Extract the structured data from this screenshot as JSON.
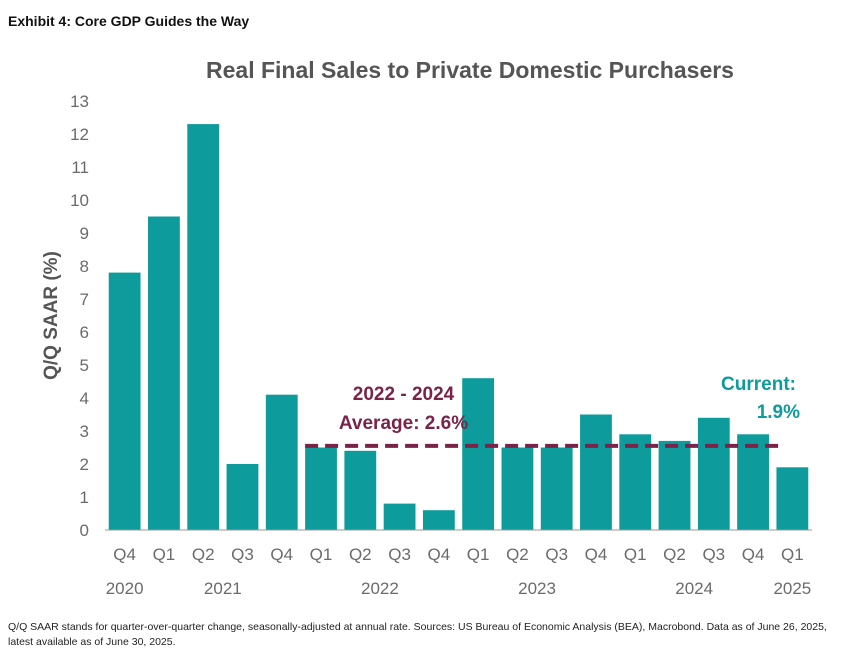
{
  "header": {
    "exhibit_title": "Exhibit 4: Core GDP Guides the Way"
  },
  "colors": {
    "bar": "#0e9b9b",
    "average_line": "#7a2348",
    "current_text": "#0e9b9b",
    "axis_text": "#6b6b6b",
    "title_text": "#555555"
  },
  "chart_data": {
    "type": "bar",
    "title": "Real Final Sales to Private Domestic Purchasers",
    "ylabel": "Q/Q SAAR (%)",
    "xlabel": "",
    "ylim": [
      0,
      13
    ],
    "yticks": [
      0,
      1,
      2,
      3,
      4,
      5,
      6,
      7,
      8,
      9,
      10,
      11,
      12,
      13
    ],
    "categories": [
      "Q4",
      "Q1",
      "Q2",
      "Q3",
      "Q4",
      "Q1",
      "Q2",
      "Q3",
      "Q4",
      "Q1",
      "Q2",
      "Q3",
      "Q4",
      "Q1",
      "Q2",
      "Q3",
      "Q4",
      "Q1"
    ],
    "values": [
      7.8,
      9.5,
      12.3,
      2.0,
      4.1,
      2.5,
      2.4,
      0.8,
      0.6,
      4.6,
      2.5,
      2.5,
      3.5,
      2.9,
      2.7,
      3.4,
      2.9,
      1.9
    ],
    "year_labels": [
      {
        "label": "2020",
        "index": 0
      },
      {
        "label": "2021",
        "index": 2.5
      },
      {
        "label": "2022",
        "index": 6.5
      },
      {
        "label": "2023",
        "index": 10.5
      },
      {
        "label": "2024",
        "index": 14.5
      },
      {
        "label": "2025",
        "index": 17
      }
    ],
    "average_line": {
      "value": 2.55,
      "start_index": 5,
      "end_index": 17
    },
    "annotations": {
      "average_line1": "2022 - 2024",
      "average_line2": "Average: 2.6%",
      "current_line1": "Current:",
      "current_line2": "1.9%"
    },
    "grid": false,
    "legend": "none"
  },
  "footnote": {
    "text": "Q/Q SAAR stands for quarter-over-quarter change, seasonally-adjusted at annual rate. Sources: US Bureau of Economic Analysis (BEA), Macrobond. Data as of June 26, 2025, latest available as of June 30, 2025."
  }
}
